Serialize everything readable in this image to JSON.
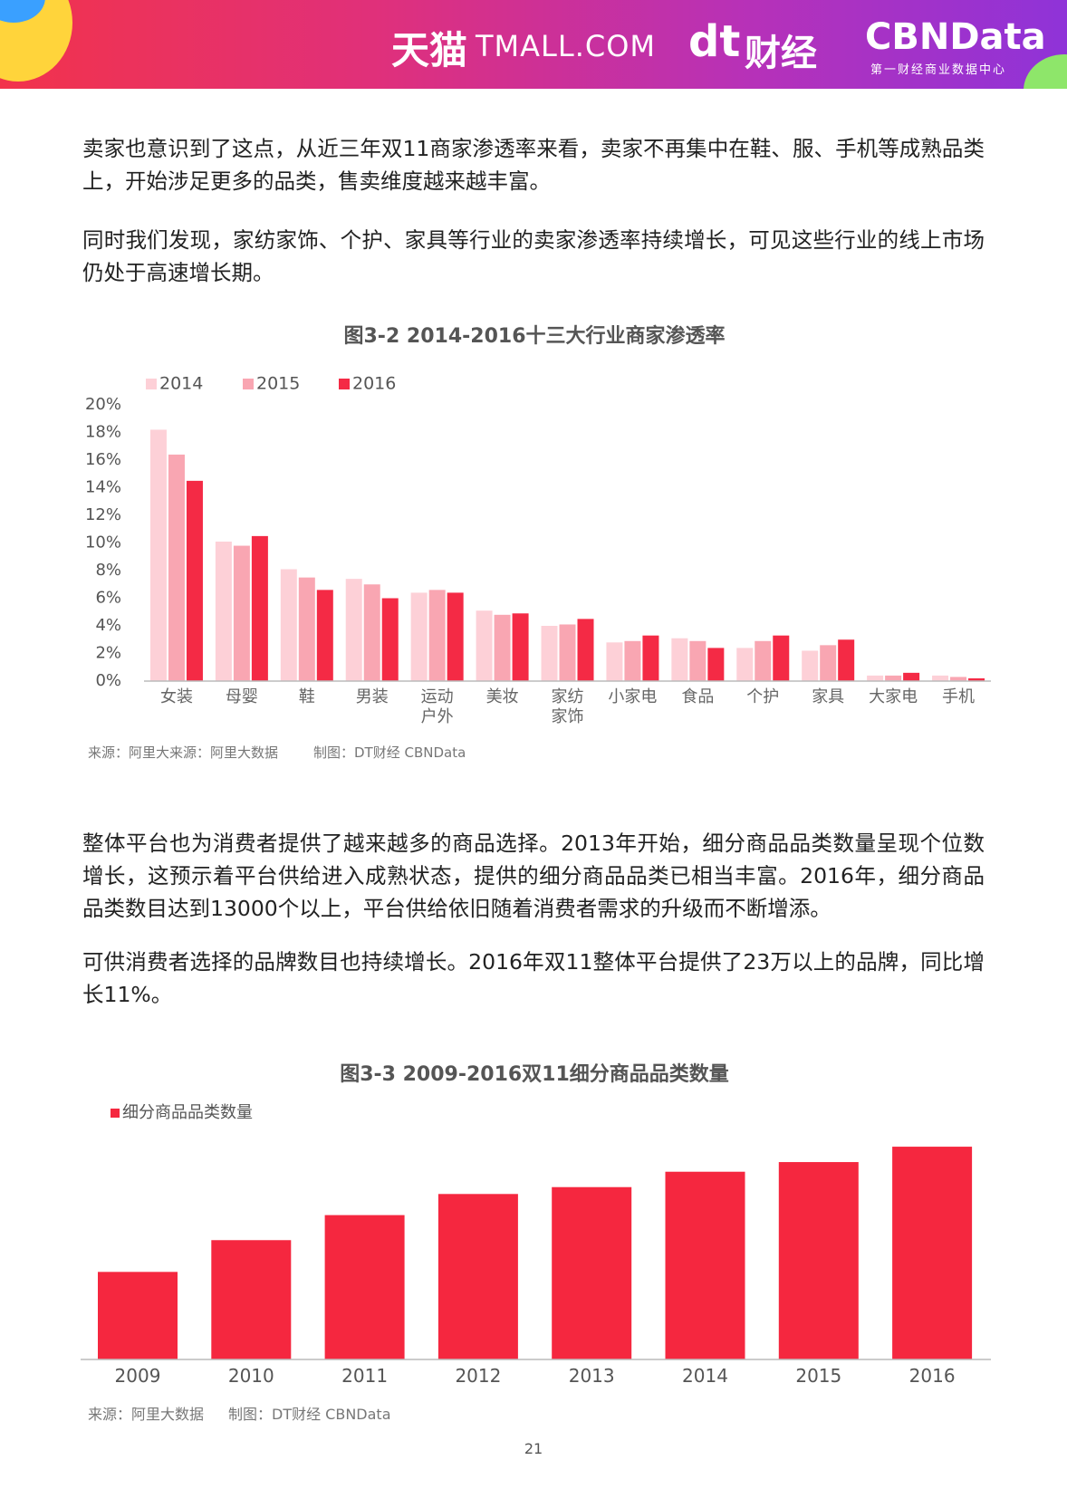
{
  "header": {
    "logos": [
      "天猫",
      "TMALL.COM",
      "dt",
      "财经",
      "CBNData",
      "第一财经商业数据中心"
    ]
  },
  "paragraphs": [
    "卖家也意识到了这点，从近三年双11商家渗透率来看，卖家不再集中在鞋、服、手机等成熟品类上，开始涉足更多的品类，售卖维度越来越丰富。",
    "同时我们发现，家纺家饰、个护、家具等行业的卖家渗透率持续增长，可见这些行业的线上市场仍处于高速增长期。",
    "整体平台也为消费者提供了越来越多的商品选择。2013年开始，细分商品品类数量呈现个位数增长，这预示着平台供给进入成熟状态，提供的细分商品品类已相当丰富。2016年，细分商品品类数目达到13000个以上，平台供给依旧随着消费者需求的升级而不断增添。",
    "可供消费者选择的品牌数目也持续增长。2016年双11整体平台提供了23万以上的品牌，同比增长11%。"
  ],
  "chart_data": [
    {
      "type": "bar",
      "title": "图3-2 2014-2016十三大行业商家渗透率",
      "categories": [
        "女装",
        "母婴",
        "鞋",
        "男装",
        "运动\n户外",
        "美妆",
        "家纺\n家饰",
        "小家电",
        "食品",
        "个护",
        "家具",
        "大家电",
        "手机"
      ],
      "series": [
        {
          "name": "2014",
          "color": "#fdd0d7",
          "values": [
            18.2,
            10.1,
            8.1,
            7.4,
            6.4,
            5.1,
            4.0,
            2.8,
            3.1,
            2.4,
            2.2,
            0.4,
            0.4
          ]
        },
        {
          "name": "2015",
          "color": "#f9a6b2",
          "values": [
            16.4,
            9.8,
            7.5,
            7.0,
            6.6,
            4.8,
            4.1,
            2.9,
            2.9,
            2.9,
            2.6,
            0.4,
            0.3
          ]
        },
        {
          "name": "2016",
          "color": "#f42a45",
          "values": [
            14.5,
            10.5,
            6.6,
            6.0,
            6.4,
            4.9,
            4.5,
            3.3,
            2.4,
            3.3,
            3.0,
            0.6,
            0.2
          ]
        }
      ],
      "ylim": [
        0,
        20
      ],
      "yticks": [
        {
          "value": 0,
          "label": "0%"
        },
        {
          "value": 2,
          "label": "2%"
        },
        {
          "value": 4,
          "label": "4%"
        },
        {
          "value": 6,
          "label": "6%"
        },
        {
          "value": 8,
          "label": "8%"
        },
        {
          "value": 10,
          "label": "10%"
        },
        {
          "value": 12,
          "label": "12%"
        },
        {
          "value": 14,
          "label": "14%"
        },
        {
          "value": 16,
          "label": "16%"
        },
        {
          "value": 18,
          "label": "18%"
        },
        {
          "value": 20,
          "label": "20%"
        }
      ],
      "grid": false,
      "legend": "top-left",
      "source": "来源：阿里大来源：阿里大数据",
      "credit": "制图：DT财经 CBNData"
    },
    {
      "type": "bar",
      "title": "图3-3 2009-2016双11细分商品品类数量",
      "categories": [
        "2009",
        "2010",
        "2011",
        "2012",
        "2013",
        "2014",
        "2015",
        "2016"
      ],
      "series": [
        {
          "name": "细分商品品类数量",
          "color": "#f5273f",
          "values": [
            5350,
            7290,
            8820,
            10110,
            10530,
            11470,
            12060,
            13000
          ]
        }
      ],
      "ylim": [
        0,
        14000
      ],
      "grid": false,
      "legend": "top-left",
      "source": "来源：阿里大数据",
      "credit": "制图：DT财经 CBNData"
    }
  ],
  "page_number": "21"
}
